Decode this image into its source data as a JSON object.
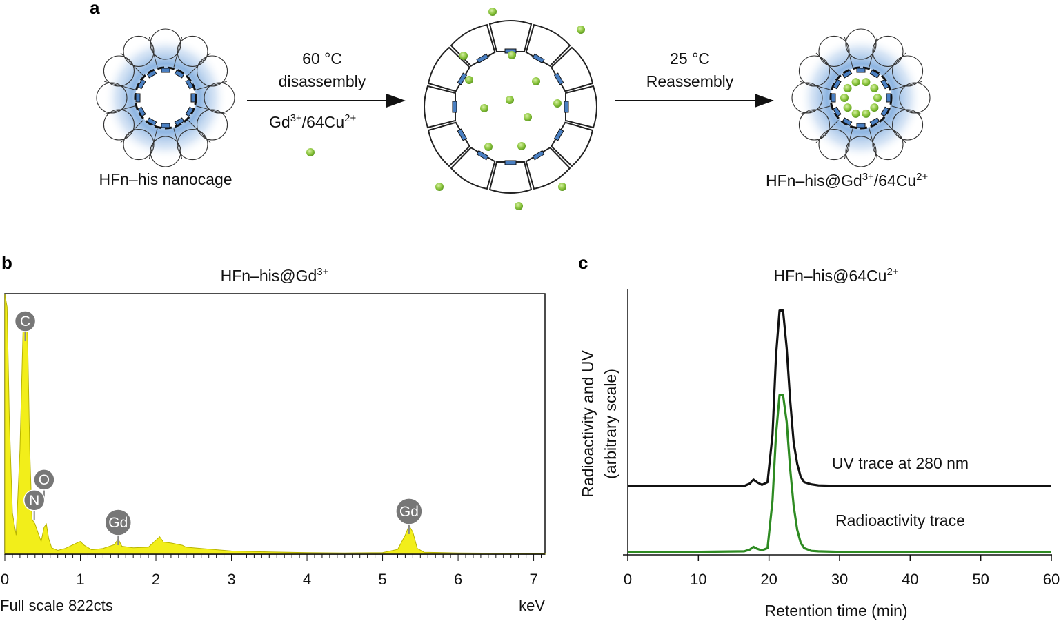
{
  "panels": {
    "a": "a",
    "b": "b",
    "c": "c"
  },
  "schematic": {
    "left_label": "HFn–his nanocage",
    "step1_line1": "60 °C",
    "step1_line2": "disassembly",
    "step1_ions_base": "Gd",
    "step1_ions_sup1": "3+",
    "step1_ions_mid": "/64Cu",
    "step1_ions_sup2": "2+",
    "step2_line1": "25 °C",
    "step2_line2": "Reassembly",
    "right_label_base": "HFn–his@Gd",
    "right_label_sup1": "3+",
    "right_label_mid": "/64Cu",
    "right_label_sup2": "2+",
    "colors": {
      "ion": "#8dc63f",
      "subunit_tag": "#4a7fc1",
      "glow": "#7aa8dc"
    }
  },
  "chart_data": [
    {
      "type": "area",
      "panel": "b",
      "title_base": "HFn–his@Gd",
      "title_sup": "3+",
      "xlabel_left": "Full scale 822cts",
      "xlabel_right": "keV",
      "xlim": [
        0,
        7.15
      ],
      "ylim": [
        0,
        822
      ],
      "xticks": [
        "0",
        "1",
        "2",
        "3",
        "4",
        "5",
        "6",
        "7"
      ],
      "fill_color": "#f2ee1a",
      "x": [
        0.0,
        0.03,
        0.06,
        0.1,
        0.15,
        0.2,
        0.24,
        0.27,
        0.3,
        0.33,
        0.36,
        0.4,
        0.45,
        0.48,
        0.52,
        0.55,
        0.58,
        0.62,
        0.7,
        0.8,
        0.95,
        1.0,
        1.05,
        1.15,
        1.3,
        1.45,
        1.5,
        1.55,
        1.7,
        1.9,
        2.05,
        2.1,
        2.2,
        2.35,
        2.4,
        2.6,
        3.0,
        3.5,
        4.0,
        4.5,
        5.0,
        5.2,
        5.3,
        5.35,
        5.4,
        5.46,
        5.55,
        6.0,
        6.5,
        7.0,
        7.15
      ],
      "values": [
        820,
        780,
        420,
        130,
        60,
        330,
        700,
        735,
        700,
        330,
        110,
        95,
        60,
        40,
        85,
        95,
        50,
        20,
        12,
        18,
        35,
        40,
        28,
        14,
        18,
        30,
        48,
        25,
        20,
        22,
        55,
        38,
        35,
        28,
        22,
        18,
        10,
        7,
        5,
        4,
        5,
        15,
        60,
        90,
        70,
        18,
        6,
        4,
        3,
        2,
        2
      ],
      "peaks": [
        {
          "label": "C",
          "x": 0.27,
          "y": 735
        },
        {
          "label": "O",
          "x": 0.52,
          "y": 235
        },
        {
          "label": "N",
          "x": 0.39,
          "y": 170
        },
        {
          "label": "Gd",
          "x": 1.5,
          "y": 100
        },
        {
          "label": "Gd",
          "x": 5.35,
          "y": 135
        }
      ]
    },
    {
      "type": "line",
      "panel": "c",
      "title_base": "HFn–his@64Cu",
      "title_sup": "2+",
      "xlabel": "Retention time (min)",
      "ylabel_line1": "Radioactivity and UV",
      "ylabel_line2": "(arbitrary scale)",
      "xlim": [
        0,
        60
      ],
      "ylim": [
        0,
        1
      ],
      "xticks": [
        0,
        10,
        20,
        30,
        40,
        50,
        60
      ],
      "series": [
        {
          "name": "UV trace at 280 nm",
          "color": "#111111",
          "x": [
            0,
            10,
            16.5,
            17.3,
            17.8,
            18.3,
            19,
            19.8,
            20.5,
            21,
            21.5,
            22,
            22.5,
            23,
            23.5,
            24,
            24.5,
            25,
            26,
            27,
            30,
            40,
            50,
            60
          ],
          "values": [
            0.255,
            0.255,
            0.256,
            0.265,
            0.28,
            0.27,
            0.26,
            0.27,
            0.45,
            0.75,
            0.92,
            0.92,
            0.78,
            0.58,
            0.42,
            0.34,
            0.29,
            0.27,
            0.262,
            0.258,
            0.256,
            0.255,
            0.255,
            0.255
          ]
        },
        {
          "name": "Radioactivity trace",
          "color": "#2e8b22",
          "x": [
            0,
            10,
            16.5,
            17.3,
            17.8,
            18.3,
            19,
            19.8,
            20.5,
            21,
            21.5,
            22,
            22.5,
            23,
            23.5,
            24,
            24.5,
            25,
            26,
            27,
            30,
            40,
            50,
            60
          ],
          "values": [
            0.005,
            0.006,
            0.008,
            0.015,
            0.025,
            0.018,
            0.012,
            0.02,
            0.2,
            0.45,
            0.6,
            0.6,
            0.5,
            0.32,
            0.18,
            0.09,
            0.04,
            0.02,
            0.01,
            0.008,
            0.006,
            0.005,
            0.005,
            0.005
          ]
        }
      ],
      "annotations": [
        "UV trace at 280 nm",
        "Radioactivity trace"
      ]
    }
  ]
}
